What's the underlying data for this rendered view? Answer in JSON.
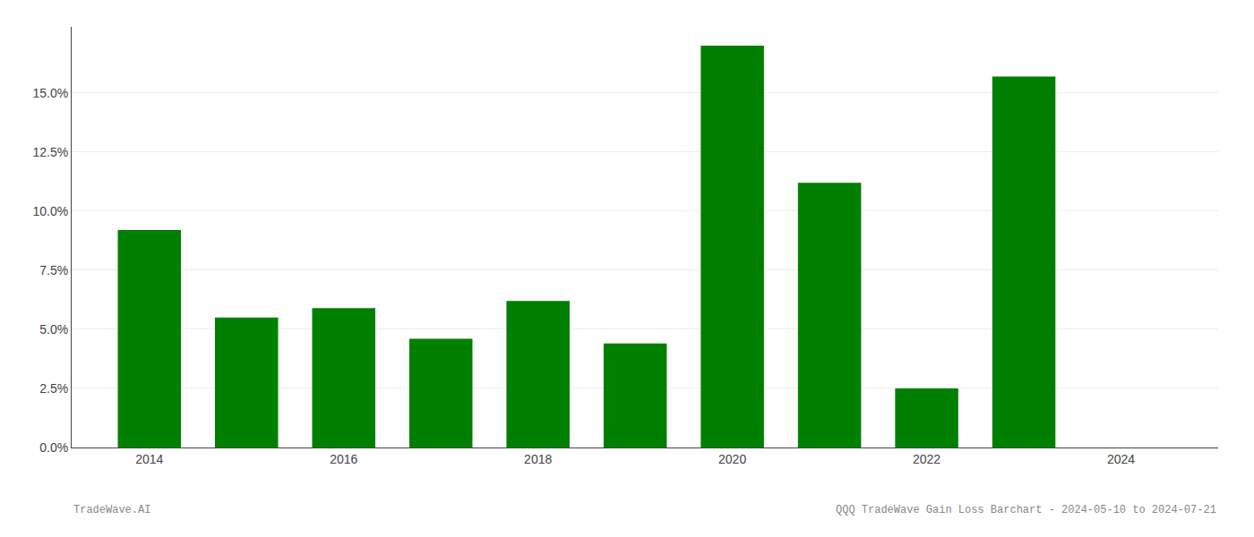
{
  "chart_data": {
    "type": "bar",
    "x": [
      2014,
      2015,
      2016,
      2017,
      2018,
      2019,
      2020,
      2021,
      2022,
      2023,
      2024
    ],
    "values": [
      0.092,
      0.055,
      0.059,
      0.046,
      0.062,
      0.044,
      0.17,
      0.112,
      0.025,
      0.157,
      0.0
    ],
    "color": "#008000",
    "xlim": [
      2013.2,
      2025.0
    ],
    "xticks": [
      2014,
      2016,
      2018,
      2020,
      2022,
      2024
    ],
    "ylim": [
      0,
      0.178
    ],
    "yticks": [
      {
        "value": 0.0,
        "label": "0.0%"
      },
      {
        "value": 0.025,
        "label": "2.5%"
      },
      {
        "value": 0.05,
        "label": "5.0%"
      },
      {
        "value": 0.075,
        "label": "7.5%"
      },
      {
        "value": 0.1,
        "label": "10.0%"
      },
      {
        "value": 0.125,
        "label": "12.5%"
      },
      {
        "value": 0.15,
        "label": "15.0%"
      }
    ],
    "grid": true,
    "annotations": [
      "TradeWave.AI",
      "QQQ TradeWave Gain Loss Barchart - 2024-05-10 to 2024-07-21"
    ]
  }
}
